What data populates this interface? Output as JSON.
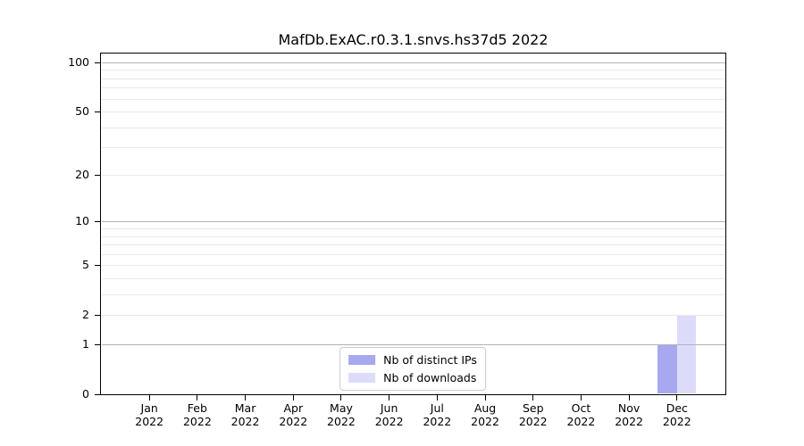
{
  "chart_data": {
    "type": "bar",
    "title": "MafDb.ExAC.r0.3.1.snvs.hs37d5 2022",
    "categories": [
      "Jan",
      "Feb",
      "Mar",
      "Apr",
      "May",
      "Jun",
      "Jul",
      "Aug",
      "Sep",
      "Oct",
      "Nov",
      "Dec"
    ],
    "category_year": "2022",
    "series": [
      {
        "name": "Nb of distinct IPs",
        "color": "#a8a8f0",
        "values": [
          0,
          0,
          0,
          0,
          0,
          0,
          0,
          0,
          0,
          0,
          0,
          1
        ]
      },
      {
        "name": "Nb of downloads",
        "color": "#dcdcfa",
        "values": [
          0,
          0,
          0,
          0,
          0,
          0,
          0,
          0,
          0,
          0,
          0,
          2
        ]
      }
    ],
    "xlabel": "",
    "ylabel": "",
    "yscale": "log1p",
    "ylim": [
      0,
      113
    ],
    "y_ticks": [
      100,
      50,
      20,
      10,
      5,
      2,
      1,
      0
    ],
    "y_major_grid": [
      1,
      10,
      100
    ],
    "y_minor_grid": [
      2,
      3,
      4,
      5,
      6,
      7,
      8,
      9,
      20,
      30,
      40,
      50,
      60,
      70,
      80,
      90
    ],
    "grid": "horizontal",
    "legend_position": "lower center",
    "colors": {
      "major_grid": "#b3b3b3",
      "minor_grid": "#e9e9e9",
      "axis": "#000000",
      "background": "#ffffff",
      "text": "#000000"
    }
  }
}
